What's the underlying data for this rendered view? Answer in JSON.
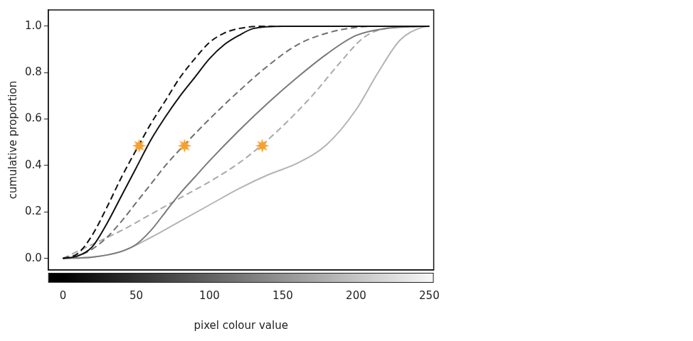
{
  "chart_data": {
    "type": "line",
    "x_label": "pixel colour value",
    "y_label": "cumulative proportion",
    "xlim": [
      -10,
      253
    ],
    "ylim": [
      -0.05,
      1.07
    ],
    "xticks": [
      0,
      50,
      100,
      150,
      200,
      250
    ],
    "yticks": [
      {
        "value": 0,
        "label": "0.0"
      },
      {
        "value": 0.2,
        "label": "0.2"
      },
      {
        "value": 0.4,
        "label": "0.4"
      },
      {
        "value": 0.6,
        "label": "0.6"
      },
      {
        "value": 0.8,
        "label": "0.8"
      },
      {
        "value": 1,
        "label": "1.0"
      }
    ],
    "grid": false,
    "series": [
      {
        "color": "#111111",
        "line_style": "dashed",
        "x": [
          0,
          10,
          20,
          30,
          40,
          52,
          60,
          70,
          80,
          90,
          100,
          110,
          120,
          140,
          250
        ],
        "values": [
          0,
          0.02,
          0.1,
          0.22,
          0.35,
          0.49,
          0.58,
          0.68,
          0.78,
          0.86,
          0.93,
          0.97,
          0.99,
          1,
          1
        ]
      },
      {
        "color": "#111111",
        "line_style": "solid",
        "x": [
          0,
          10,
          20,
          30,
          40,
          50,
          60,
          70,
          80,
          90,
          100,
          110,
          120,
          130,
          150,
          250
        ],
        "values": [
          0,
          0.01,
          0.05,
          0.15,
          0.27,
          0.39,
          0.51,
          0.61,
          0.7,
          0.78,
          0.86,
          0.92,
          0.96,
          0.99,
          1,
          1
        ]
      },
      {
        "color": "#707070",
        "line_style": "dashed",
        "x": [
          0,
          10,
          20,
          30,
          40,
          50,
          60,
          70,
          83,
          100,
          120,
          140,
          160,
          180,
          200,
          220,
          250
        ],
        "values": [
          0,
          0.01,
          0.04,
          0.09,
          0.16,
          0.24,
          0.32,
          0.4,
          0.49,
          0.6,
          0.72,
          0.83,
          0.92,
          0.97,
          0.995,
          1,
          1
        ]
      },
      {
        "color": "#7a7a7a",
        "line_style": "solid",
        "x": [
          0,
          20,
          40,
          50,
          60,
          70,
          80,
          90,
          100,
          120,
          140,
          160,
          180,
          200,
          220,
          250
        ],
        "values": [
          0,
          0.005,
          0.03,
          0.06,
          0.12,
          0.2,
          0.28,
          0.35,
          0.42,
          0.55,
          0.67,
          0.78,
          0.88,
          0.96,
          0.99,
          1
        ]
      },
      {
        "color": "#aaaaaa",
        "line_style": "dashed",
        "x": [
          0,
          20,
          40,
          60,
          80,
          100,
          120,
          136,
          150,
          170,
          190,
          205,
          220,
          250
        ],
        "values": [
          0,
          0.06,
          0.12,
          0.19,
          0.26,
          0.33,
          0.41,
          0.49,
          0.57,
          0.7,
          0.85,
          0.95,
          0.99,
          1
        ]
      },
      {
        "color": "#b4b4b4",
        "line_style": "solid",
        "x": [
          0,
          20,
          40,
          60,
          80,
          100,
          120,
          140,
          160,
          180,
          200,
          215,
          230,
          245,
          250
        ],
        "values": [
          0,
          0.005,
          0.03,
          0.09,
          0.16,
          0.23,
          0.3,
          0.36,
          0.41,
          0.49,
          0.64,
          0.8,
          0.94,
          0.995,
          1
        ]
      },
      {
        "type": "scatter",
        "marker": "star",
        "color": "#f5a030",
        "x": [
          52,
          83,
          136
        ],
        "values": [
          0.485,
          0.485,
          0.485
        ]
      }
    ]
  }
}
